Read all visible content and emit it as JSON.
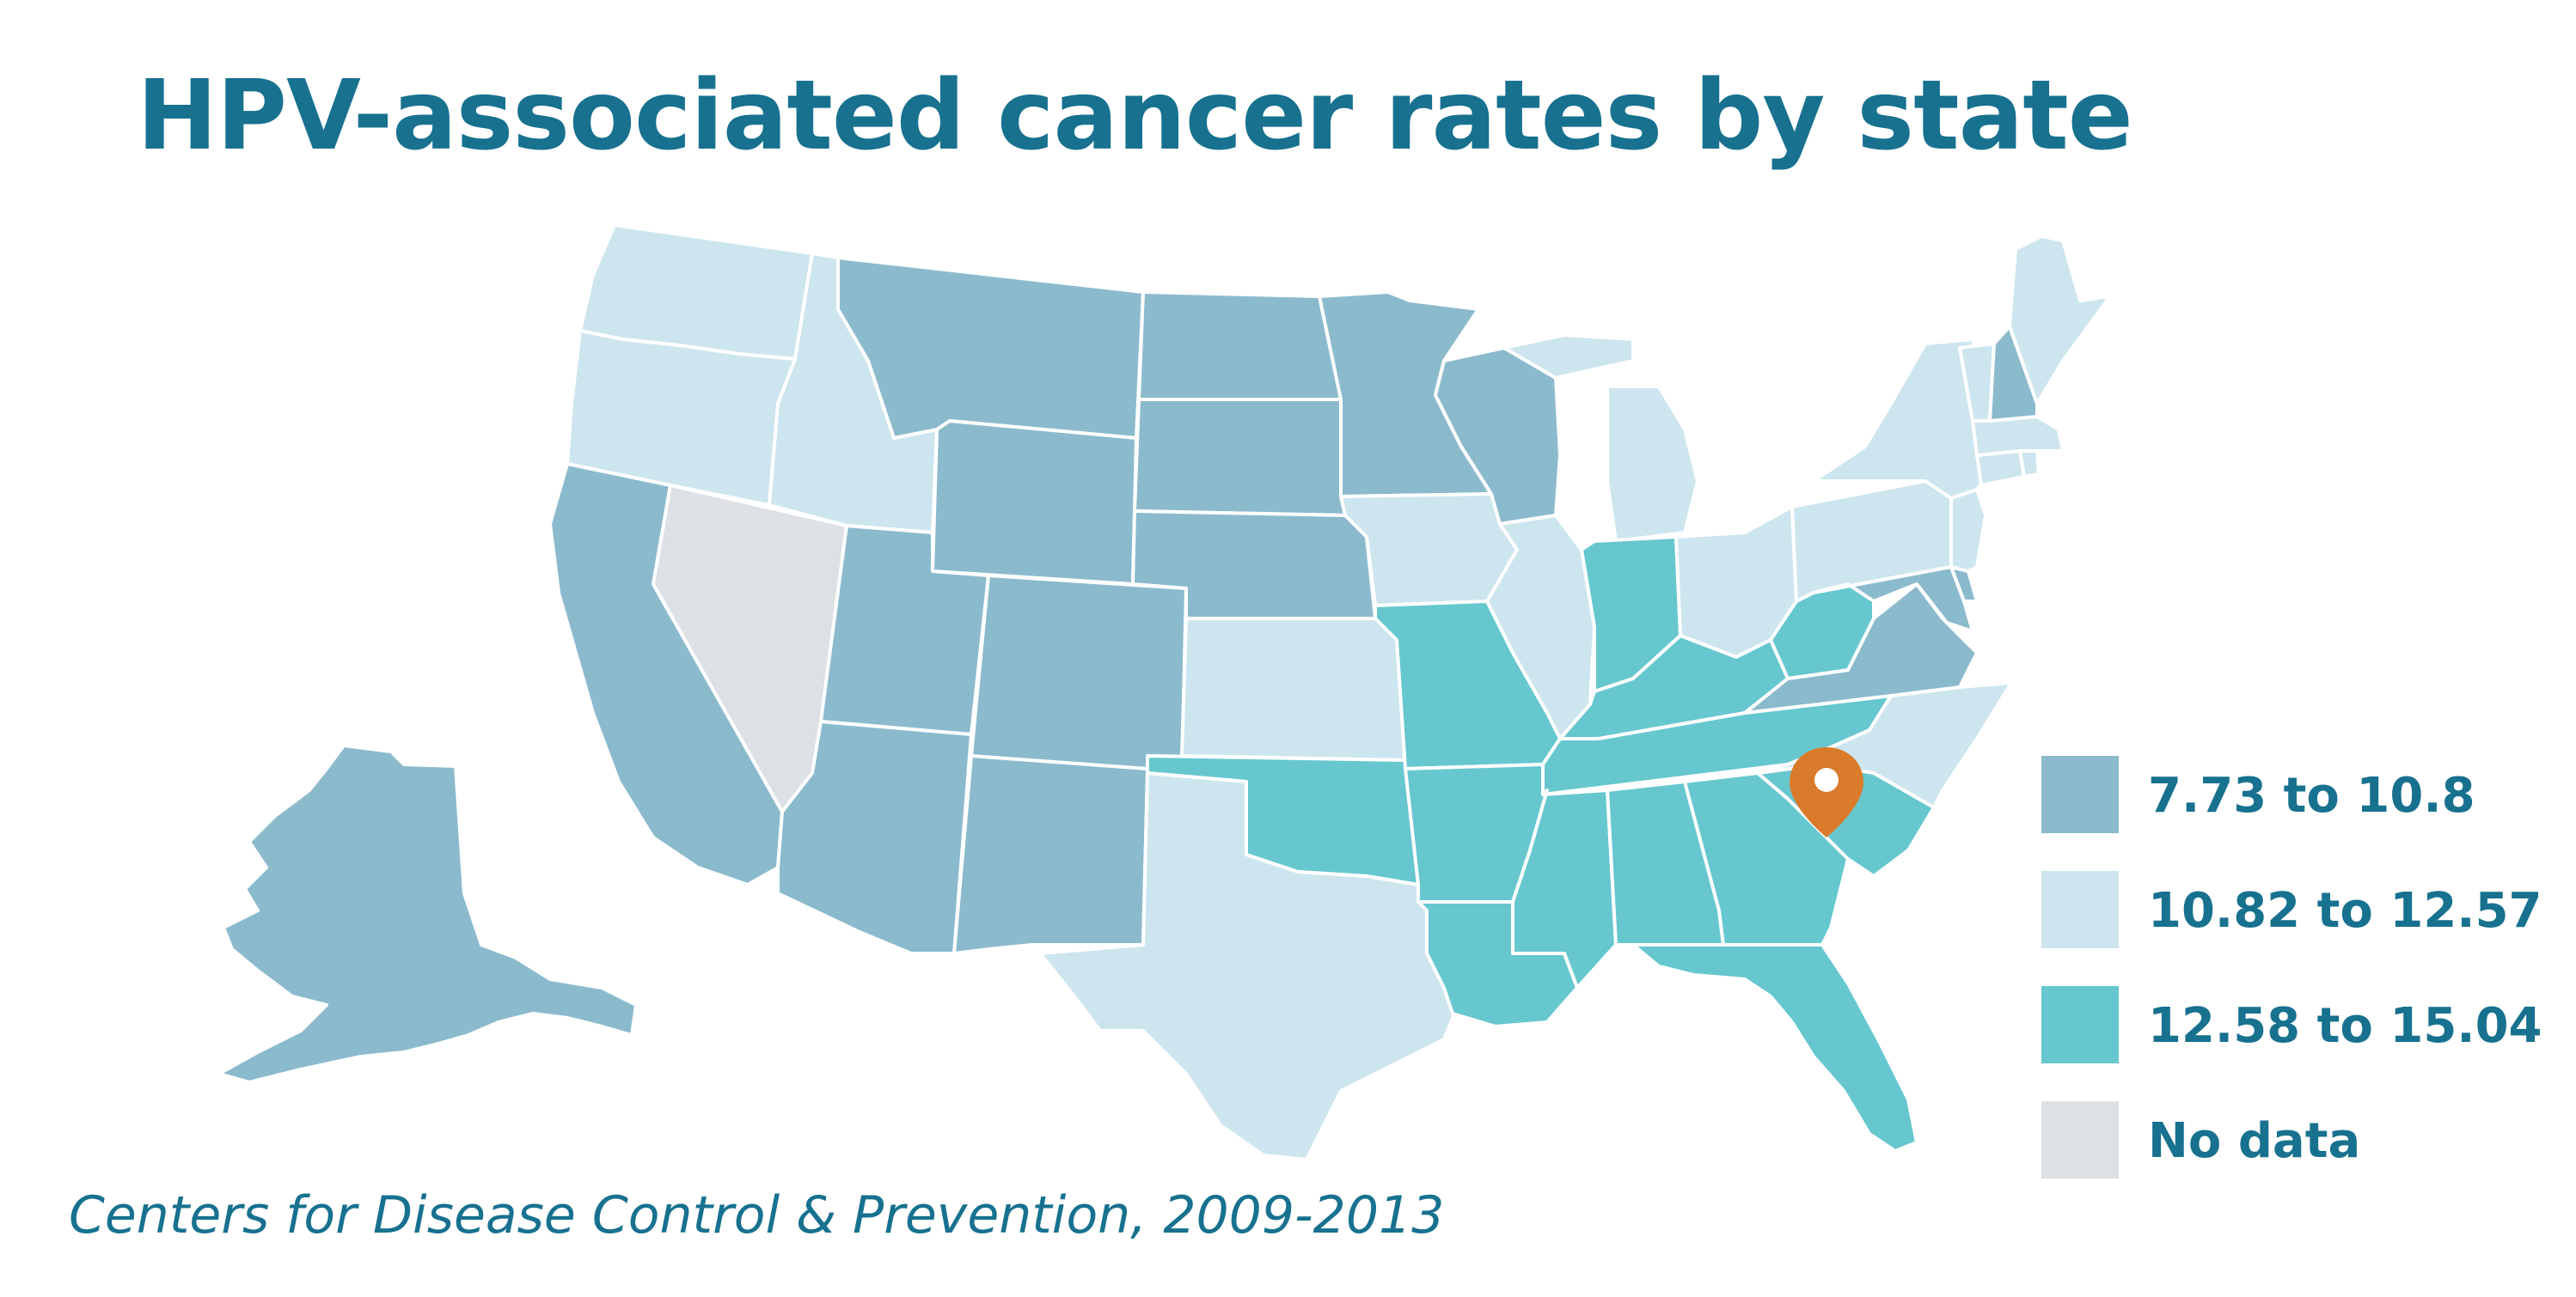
{
  "title": "HPV-associated cancer rates by state",
  "source": "Centers for Disease Control & Prevention, 2009-2013",
  "legend": [
    {
      "key": "low",
      "label": "7.73 to 10.8",
      "color": "#8bbacd"
    },
    {
      "key": "mid",
      "label": "10.82 to 12.57",
      "color": "#cde5ee"
    },
    {
      "key": "high",
      "label": "12.58 to 15.04",
      "color": "#66c7cf"
    },
    {
      "key": "none",
      "label": "No data",
      "color": "#dde1e5"
    }
  ],
  "marker": {
    "icon": "map-pin-icon",
    "color": "#d97b2a",
    "state": "SC"
  },
  "states": {
    "AK": "low",
    "WA": "mid",
    "OR": "mid",
    "CA": "low",
    "NV": "none",
    "ID": "mid",
    "MT": "low",
    "WY": "low",
    "UT": "low",
    "AZ": "low",
    "CO": "low",
    "NM": "low",
    "ND": "low",
    "SD": "low",
    "NE": "low",
    "KS": "mid",
    "OK": "high",
    "TX": "mid",
    "MN": "low",
    "IA": "mid",
    "MO": "high",
    "AR": "high",
    "LA": "high",
    "WI": "low",
    "IL": "mid",
    "MI": "mid",
    "IN": "high",
    "OH": "mid",
    "KY": "high",
    "TN": "high",
    "MS": "high",
    "AL": "high",
    "GA": "high",
    "FL": "high",
    "SC": "high",
    "NC": "mid",
    "VA": "low",
    "WV": "high",
    "PA": "mid",
    "NY": "mid",
    "MD": "low",
    "DE": "low",
    "NJ": "mid",
    "CT": "mid",
    "RI": "mid",
    "MA": "mid",
    "VT": "mid",
    "NH": "low",
    "ME": "mid"
  }
}
